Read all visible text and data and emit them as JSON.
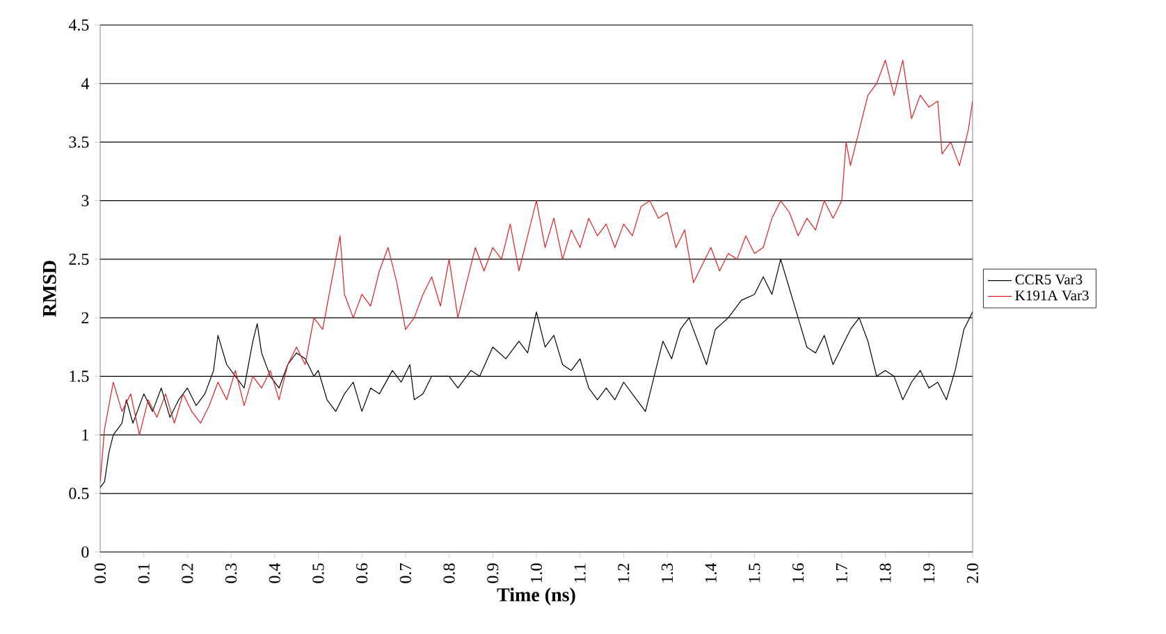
{
  "chart_data": {
    "type": "line",
    "xlabel": "Time (ns)",
    "ylabel": "RMSD",
    "xlim": [
      0,
      2
    ],
    "ylim": [
      0,
      4.5
    ],
    "xticks": [
      {
        "value": 0,
        "label": "0.0"
      },
      {
        "value": 0.1,
        "label": "0.1"
      },
      {
        "value": 0.2,
        "label": "0.2"
      },
      {
        "value": 0.3,
        "label": "0.3"
      },
      {
        "value": 0.4,
        "label": "0.4"
      },
      {
        "value": 0.5,
        "label": "0.5"
      },
      {
        "value": 0.6,
        "label": "0.6"
      },
      {
        "value": 0.7,
        "label": "0.7"
      },
      {
        "value": 0.8,
        "label": "0.8"
      },
      {
        "value": 0.9,
        "label": "0.9"
      },
      {
        "value": 1,
        "label": "1.0"
      },
      {
        "value": 1.1,
        "label": "1.1"
      },
      {
        "value": 1.2,
        "label": "1.2"
      },
      {
        "value": 1.3,
        "label": "1.3"
      },
      {
        "value": 1.4,
        "label": "1.4"
      },
      {
        "value": 1.5,
        "label": "1.5"
      },
      {
        "value": 1.6,
        "label": "1.6"
      },
      {
        "value": 1.7,
        "label": "1.7"
      },
      {
        "value": 1.8,
        "label": "1.8"
      },
      {
        "value": 1.9,
        "label": "1.9"
      },
      {
        "value": 2,
        "label": "2.0"
      }
    ],
    "yticks": [
      0,
      0.5,
      1,
      1.5,
      2,
      2.5,
      3,
      3.5,
      4,
      4.5
    ],
    "grid": "y",
    "legend": "right",
    "marker": "none",
    "line_style": "solid",
    "series": [
      {
        "name": "CCR5 Var3",
        "color": "#000000",
        "x": [
          0,
          0.01,
          0.02,
          0.03,
          0.05,
          0.06,
          0.075,
          0.1,
          0.12,
          0.14,
          0.16,
          0.18,
          0.2,
          0.22,
          0.24,
          0.26,
          0.27,
          0.29,
          0.31,
          0.33,
          0.35,
          0.36,
          0.37,
          0.39,
          0.41,
          0.43,
          0.45,
          0.47,
          0.49,
          0.5,
          0.52,
          0.54,
          0.56,
          0.58,
          0.6,
          0.62,
          0.64,
          0.67,
          0.69,
          0.71,
          0.72,
          0.74,
          0.76,
          0.8,
          0.82,
          0.85,
          0.87,
          0.9,
          0.93,
          0.96,
          0.98,
          1.0,
          1.02,
          1.04,
          1.06,
          1.08,
          1.1,
          1.12,
          1.14,
          1.16,
          1.18,
          1.2,
          1.23,
          1.25,
          1.27,
          1.29,
          1.31,
          1.33,
          1.35,
          1.37,
          1.39,
          1.41,
          1.44,
          1.47,
          1.5,
          1.52,
          1.54,
          1.56,
          1.58,
          1.6,
          1.62,
          1.64,
          1.66,
          1.68,
          1.7,
          1.72,
          1.74,
          1.76,
          1.78,
          1.8,
          1.82,
          1.84,
          1.86,
          1.88,
          1.9,
          1.92,
          1.94,
          1.96,
          1.98,
          2.0
        ],
        "values": [
          0.55,
          0.6,
          0.85,
          1.0,
          1.1,
          1.3,
          1.1,
          1.35,
          1.2,
          1.4,
          1.15,
          1.3,
          1.4,
          1.25,
          1.35,
          1.55,
          1.85,
          1.6,
          1.5,
          1.4,
          1.8,
          1.95,
          1.7,
          1.5,
          1.4,
          1.6,
          1.7,
          1.65,
          1.5,
          1.55,
          1.3,
          1.2,
          1.35,
          1.45,
          1.2,
          1.4,
          1.35,
          1.55,
          1.45,
          1.6,
          1.3,
          1.35,
          1.5,
          1.5,
          1.4,
          1.55,
          1.5,
          1.75,
          1.65,
          1.8,
          1.7,
          2.05,
          1.75,
          1.85,
          1.6,
          1.55,
          1.65,
          1.4,
          1.3,
          1.4,
          1.3,
          1.45,
          1.3,
          1.2,
          1.5,
          1.8,
          1.65,
          1.9,
          2.0,
          1.8,
          1.6,
          1.9,
          2.0,
          2.15,
          2.2,
          2.35,
          2.2,
          2.5,
          2.25,
          2.0,
          1.75,
          1.7,
          1.85,
          1.6,
          1.75,
          1.9,
          2.0,
          1.8,
          1.5,
          1.55,
          1.5,
          1.3,
          1.45,
          1.55,
          1.4,
          1.45,
          1.3,
          1.55,
          1.9,
          2.05
        ]
      },
      {
        "name": "K191A Var3",
        "color": "#e02020",
        "x": [
          0,
          0.01,
          0.02,
          0.03,
          0.05,
          0.07,
          0.09,
          0.11,
          0.13,
          0.15,
          0.17,
          0.19,
          0.21,
          0.23,
          0.25,
          0.27,
          0.29,
          0.31,
          0.33,
          0.35,
          0.37,
          0.39,
          0.41,
          0.43,
          0.45,
          0.47,
          0.49,
          0.51,
          0.53,
          0.55,
          0.56,
          0.58,
          0.6,
          0.62,
          0.64,
          0.66,
          0.68,
          0.7,
          0.72,
          0.74,
          0.76,
          0.78,
          0.8,
          0.82,
          0.84,
          0.86,
          0.88,
          0.9,
          0.92,
          0.94,
          0.96,
          0.98,
          1.0,
          1.02,
          1.04,
          1.06,
          1.08,
          1.1,
          1.12,
          1.14,
          1.16,
          1.18,
          1.2,
          1.22,
          1.24,
          1.26,
          1.28,
          1.3,
          1.32,
          1.34,
          1.36,
          1.38,
          1.4,
          1.42,
          1.44,
          1.46,
          1.48,
          1.5,
          1.52,
          1.54,
          1.56,
          1.58,
          1.6,
          1.62,
          1.64,
          1.66,
          1.68,
          1.7,
          1.71,
          1.72,
          1.74,
          1.76,
          1.78,
          1.8,
          1.82,
          1.84,
          1.86,
          1.88,
          1.9,
          1.92,
          1.93,
          1.95,
          1.97,
          1.99,
          2.0
        ],
        "values": [
          0.6,
          1.05,
          1.25,
          1.45,
          1.2,
          1.35,
          1.0,
          1.3,
          1.15,
          1.35,
          1.1,
          1.35,
          1.2,
          1.1,
          1.25,
          1.45,
          1.3,
          1.55,
          1.25,
          1.5,
          1.4,
          1.55,
          1.3,
          1.6,
          1.75,
          1.6,
          2.0,
          1.9,
          2.3,
          2.7,
          2.2,
          2.0,
          2.2,
          2.1,
          2.4,
          2.6,
          2.3,
          1.9,
          2.0,
          2.2,
          2.35,
          2.1,
          2.5,
          2.0,
          2.3,
          2.6,
          2.4,
          2.6,
          2.5,
          2.8,
          2.4,
          2.7,
          3.0,
          2.6,
          2.85,
          2.5,
          2.75,
          2.6,
          2.85,
          2.7,
          2.8,
          2.6,
          2.8,
          2.7,
          2.95,
          3.0,
          2.85,
          2.9,
          2.6,
          2.75,
          2.3,
          2.45,
          2.6,
          2.4,
          2.55,
          2.5,
          2.7,
          2.55,
          2.6,
          2.85,
          3.0,
          2.9,
          2.7,
          2.85,
          2.75,
          3.0,
          2.85,
          3.0,
          3.5,
          3.3,
          3.6,
          3.9,
          4.0,
          4.2,
          3.9,
          4.2,
          3.7,
          3.9,
          3.8,
          3.85,
          3.4,
          3.5,
          3.3,
          3.6,
          3.85
        ]
      }
    ]
  }
}
